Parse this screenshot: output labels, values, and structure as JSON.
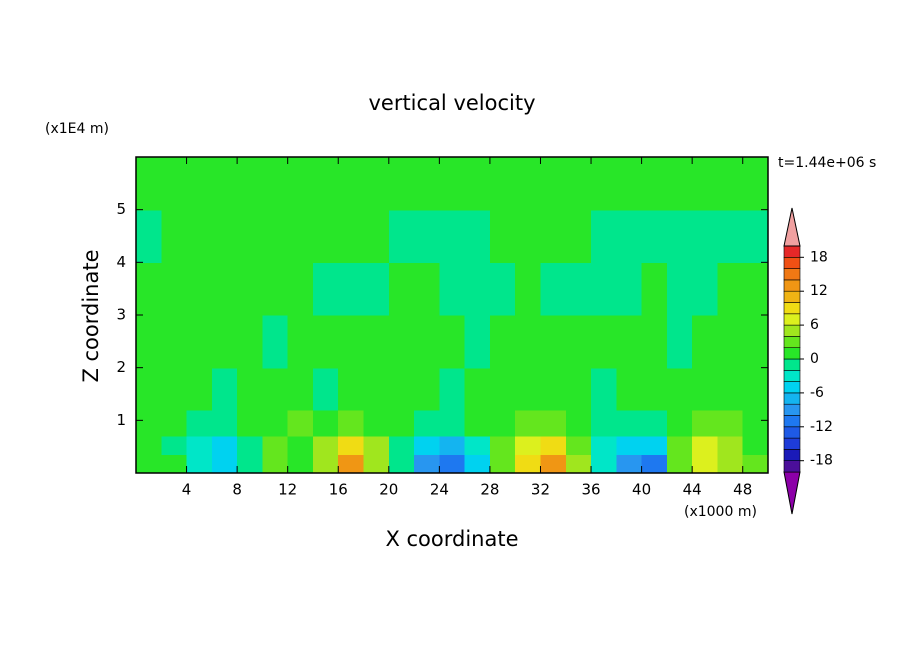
{
  "chart_data": {
    "type": "contour",
    "title": "vertical velocity",
    "xlabel": "X coordinate",
    "ylabel": "Z coordinate",
    "x_unit": "(x1000 m)",
    "y_unit": "(x1E4 m)",
    "annotation": "t=1.44e+06 s",
    "xlim": [
      0,
      50
    ],
    "ylim": [
      0,
      6
    ],
    "xticks": [
      4,
      8,
      12,
      16,
      20,
      24,
      28,
      32,
      36,
      40,
      44,
      48
    ],
    "yticks": [
      1,
      2,
      3,
      4,
      5
    ],
    "x": [
      1,
      3,
      5,
      7,
      9,
      11,
      13,
      15,
      17,
      19,
      21,
      23,
      25,
      27,
      29,
      31,
      33,
      35,
      37,
      39,
      41,
      43,
      45,
      47,
      49
    ],
    "y": [
      0.2,
      0.5,
      0.9,
      1.5,
      2.5,
      3.5,
      4.5,
      5.5
    ],
    "z": [
      [
        1,
        1,
        -3,
        -5,
        -1,
        3,
        1,
        5,
        13,
        5,
        -1,
        -9,
        -11,
        -5,
        3,
        9,
        13,
        5,
        -3,
        -9,
        -11,
        3,
        7,
        5,
        3
      ],
      [
        1,
        -1,
        -3,
        -5,
        -1,
        3,
        1,
        5,
        9,
        5,
        -1,
        -5,
        -7,
        -3,
        3,
        7,
        9,
        3,
        -3,
        -5,
        -5,
        3,
        7,
        5,
        1
      ],
      [
        1,
        1,
        -1,
        -1,
        1,
        1,
        3,
        1,
        3,
        1,
        1,
        -1,
        -1,
        1,
        1,
        3,
        3,
        1,
        -1,
        -1,
        -1,
        1,
        3,
        3,
        1
      ],
      [
        1,
        1,
        1,
        -1,
        1,
        1,
        1,
        -1,
        1,
        1,
        1,
        1,
        -1,
        1,
        1,
        1,
        1,
        1,
        -1,
        1,
        1,
        1,
        1,
        1,
        1
      ],
      [
        1,
        1,
        1,
        1,
        1,
        -1,
        1,
        1,
        1,
        1,
        1,
        1,
        1,
        -1,
        1,
        1,
        1,
        1,
        1,
        1,
        1,
        -1,
        1,
        1,
        1
      ],
      [
        1,
        1,
        1,
        1,
        1,
        1,
        1,
        -1,
        -1,
        -1,
        1,
        1,
        -1,
        -1,
        -1,
        1,
        -1,
        -1,
        -1,
        -1,
        1,
        -1,
        -1,
        1,
        1
      ],
      [
        -1,
        1,
        1,
        1,
        1,
        1,
        1,
        1,
        1,
        1,
        -1,
        -1,
        -1,
        -1,
        1,
        1,
        1,
        1,
        -1,
        -1,
        -1,
        -1,
        -1,
        -1,
        -1
      ],
      [
        1,
        1,
        1,
        1,
        1,
        1,
        1,
        1,
        1,
        1,
        1,
        1,
        1,
        1,
        1,
        1,
        1,
        1,
        1,
        1,
        1,
        1,
        1,
        1,
        1
      ]
    ],
    "levels": [
      -20,
      -18,
      -16,
      -14,
      -12,
      -10,
      -8,
      -6,
      -4,
      -2,
      0,
      2,
      4,
      6,
      8,
      10,
      12,
      14,
      16,
      18,
      20
    ],
    "colors": [
      "#8c00a8",
      "#4b0f9a",
      "#1a1ab8",
      "#1e3cd8",
      "#1e5ae6",
      "#1e78f0",
      "#2896f0",
      "#14b4f0",
      "#00d2f0",
      "#00e6c8",
      "#00e68c",
      "#28e628",
      "#64e61e",
      "#a0e61e",
      "#dcf01e",
      "#f0dc14",
      "#f0b414",
      "#f09614",
      "#f07814",
      "#f05014",
      "#e62828",
      "#f0a0a0"
    ],
    "colorbar_ticks": [
      -18,
      -12,
      -6,
      0,
      6,
      12,
      18
    ]
  }
}
